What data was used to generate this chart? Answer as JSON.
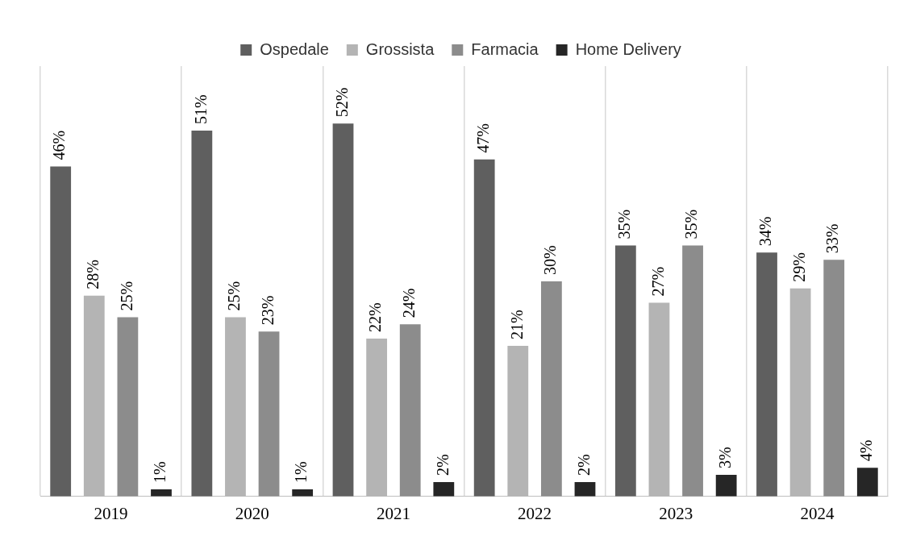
{
  "chart_data": {
    "type": "bar",
    "categories": [
      "2019",
      "2020",
      "2021",
      "2022",
      "2023",
      "2024"
    ],
    "series": [
      {
        "name": "Ospedale",
        "color": "#5f5f5f",
        "values": [
          46,
          51,
          52,
          47,
          35,
          34
        ],
        "value_labels": [
          "46%",
          "51%",
          "52%",
          "47%",
          "35%",
          "34%"
        ]
      },
      {
        "name": "Grossista",
        "color": "#b4b4b4",
        "values": [
          28,
          25,
          22,
          21,
          27,
          29
        ],
        "value_labels": [
          "28%",
          "25%",
          "22%",
          "21%",
          "27%",
          "29%"
        ]
      },
      {
        "name": "Farmacia",
        "color": "#8c8c8c",
        "values": [
          25,
          23,
          24,
          30,
          35,
          33
        ],
        "value_labels": [
          "25%",
          "23%",
          "24%",
          "30%",
          "35%",
          "33%"
        ]
      },
      {
        "name": "Home Delivery",
        "color": "#262626",
        "values": [
          1,
          1,
          2,
          2,
          3,
          4
        ],
        "value_labels": [
          "1%",
          "1%",
          "2%",
          "2%",
          "3%",
          "4%"
        ]
      }
    ],
    "relative": false,
    "grid": "x",
    "legend": "top"
  }
}
